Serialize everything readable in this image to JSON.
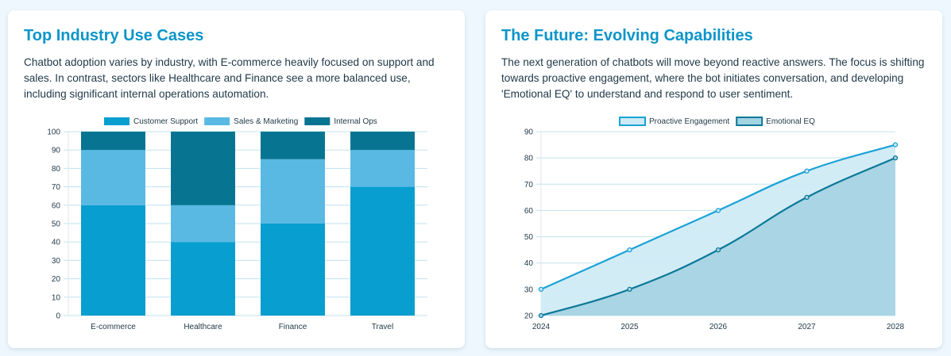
{
  "left": {
    "title": "Top Industry Use Cases",
    "text": "Chatbot adoption varies by industry, with E-commerce heavily focused on support and sales. In contrast, sectors like Healthcare and Finance see a more balanced use, including significant internal operations automation."
  },
  "right": {
    "title": "The Future: Evolving Capabilities",
    "text": "The next generation of chatbots will move beyond reactive answers. The focus is shifting towards proactive engagement, where the bot initiates conversation, and developing 'Emotional EQ' to understand and respond to user sentiment."
  },
  "chart_data": [
    {
      "type": "bar",
      "stacked": true,
      "categories": [
        "E-commerce",
        "Healthcare",
        "Finance",
        "Travel"
      ],
      "series": [
        {
          "name": "Customer Support",
          "values": [
            60,
            40,
            50,
            70
          ],
          "color": "#089ecf"
        },
        {
          "name": "Sales & Marketing",
          "values": [
            30,
            20,
            35,
            20
          ],
          "color": "#59b9e3"
        },
        {
          "name": "Internal Ops",
          "values": [
            10,
            40,
            15,
            10
          ],
          "color": "#077592"
        }
      ],
      "ylim": [
        0,
        100
      ],
      "yticks": [
        0,
        10,
        20,
        30,
        40,
        50,
        60,
        70,
        80,
        90,
        100
      ],
      "grid": true,
      "legend": "top"
    },
    {
      "type": "area",
      "x": [
        "2024",
        "2025",
        "2026",
        "2027",
        "2028"
      ],
      "series": [
        {
          "name": "Proactive Engagement",
          "values": [
            30,
            45,
            60,
            75,
            85
          ],
          "color": "#1aa2d6",
          "fill": "#cdeaf5"
        },
        {
          "name": "Emotional EQ",
          "values": [
            20,
            30,
            45,
            65,
            80
          ],
          "color": "#0b7898",
          "fill": "#a4d3e2"
        }
      ],
      "ylim": [
        20,
        90
      ],
      "yticks": [
        20,
        30,
        40,
        50,
        60,
        70,
        80,
        90
      ],
      "grid": true,
      "legend": "top"
    }
  ]
}
